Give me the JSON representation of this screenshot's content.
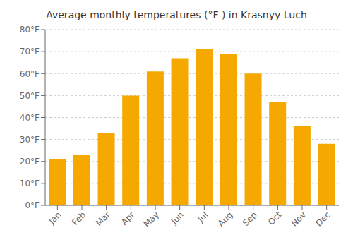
{
  "chart_data": {
    "type": "bar",
    "title": "Average monthly temperatures (°F ) in Krasnyy Luch",
    "categories": [
      "Jan",
      "Feb",
      "Mar",
      "Apr",
      "May",
      "Jun",
      "Jul",
      "Aug",
      "Sep",
      "Oct",
      "Nov",
      "Dec"
    ],
    "values": [
      21,
      23,
      33,
      50,
      61,
      67,
      71,
      69,
      60,
      47,
      36,
      28
    ],
    "color": "#F5A800",
    "ylim": [
      0,
      80
    ],
    "yticks": [
      {
        "value": 0,
        "label": "0°F"
      },
      {
        "value": 10,
        "label": "10°F"
      },
      {
        "value": 20,
        "label": "20°F"
      },
      {
        "value": 30,
        "label": "30°F"
      },
      {
        "value": 40,
        "label": "40°F"
      },
      {
        "value": 50,
        "label": "50°F"
      },
      {
        "value": 60,
        "label": "60°F"
      },
      {
        "value": 70,
        "label": "70°F"
      },
      {
        "value": 80,
        "label": "80°F"
      }
    ],
    "grid": true
  }
}
